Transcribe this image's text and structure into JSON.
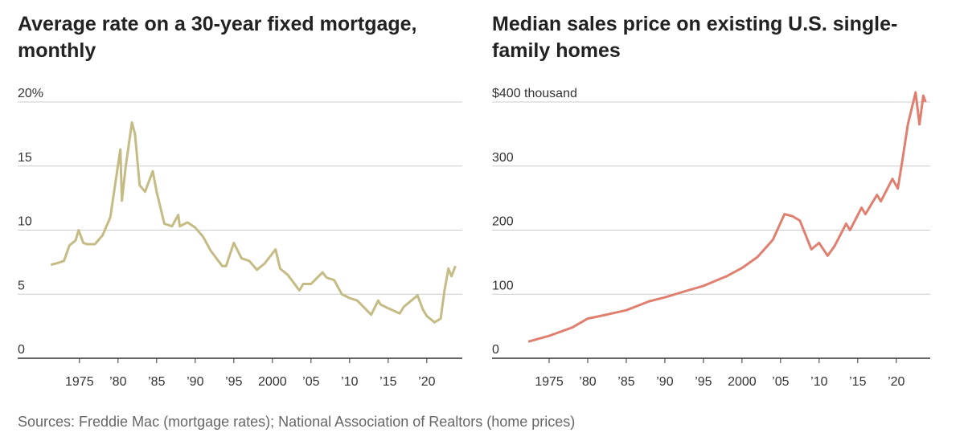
{
  "chart_data": [
    {
      "type": "line",
      "title": "Average rate on a 30-year fixed mortgage, monthly",
      "x": [
        1971.3,
        1972,
        1973,
        1973.7,
        1974.5,
        1974.9,
        1975.5,
        1976,
        1977,
        1978,
        1979,
        1980.3,
        1980.5,
        1981,
        1981.8,
        1982.2,
        1982.8,
        1983.5,
        1984.5,
        1985,
        1986,
        1987,
        1987.8,
        1988,
        1989,
        1990,
        1991,
        1992,
        1993.5,
        1994,
        1995,
        1996,
        1997,
        1998,
        1999,
        2000.4,
        2001,
        2002,
        2003.5,
        2004,
        2005,
        2006.5,
        2007,
        2008,
        2009,
        2010,
        2011,
        2012.8,
        2013.7,
        2014,
        2015,
        2016.5,
        2017,
        2018.8,
        2019.5,
        2020,
        2021,
        2021.8,
        2022.3,
        2022.8,
        2023.2,
        2023.7
      ],
      "series": [
        {
          "name": "30-year fixed rate",
          "color": "#c4bb85",
          "values": [
            7.3,
            7.4,
            7.6,
            8.8,
            9.2,
            10.0,
            9.0,
            8.9,
            8.9,
            9.6,
            11.0,
            16.3,
            12.3,
            15.0,
            18.4,
            17.5,
            13.5,
            13.0,
            14.6,
            13.0,
            10.5,
            10.3,
            11.2,
            10.3,
            10.6,
            10.2,
            9.5,
            8.4,
            7.2,
            7.2,
            9.0,
            7.8,
            7.6,
            6.9,
            7.4,
            8.5,
            7.0,
            6.5,
            5.3,
            5.8,
            5.8,
            6.7,
            6.3,
            6.1,
            5.0,
            4.7,
            4.5,
            3.4,
            4.5,
            4.2,
            3.9,
            3.5,
            4.0,
            4.9,
            3.8,
            3.3,
            2.8,
            3.1,
            5.3,
            7.0,
            6.4,
            7.2
          ]
        }
      ],
      "xlim": [
        1967,
        2024.6
      ],
      "xticks": [
        1975,
        {
          "value": 1980,
          "label": "’80"
        },
        {
          "value": 1985,
          "label": "’85"
        },
        {
          "value": 1990,
          "label": "’90"
        },
        {
          "value": 1995,
          "label": "’95"
        },
        2000,
        {
          "value": 2005,
          "label": "’05"
        },
        {
          "value": 2010,
          "label": "’10"
        },
        {
          "value": 2015,
          "label": "’15"
        },
        {
          "value": 2020,
          "label": "’20"
        }
      ],
      "ylim": [
        0,
        20
      ],
      "yticks": [
        0,
        5,
        10,
        15,
        {
          "value": 20,
          "label": "20%"
        }
      ],
      "grid": true
    },
    {
      "type": "line",
      "title": "Median sales price on existing U.S. single-family homes",
      "x": [
        1972.3,
        1975,
        1978,
        1980,
        1982,
        1985,
        1988,
        1990,
        1993,
        1995,
        1998,
        2000,
        2002,
        2004,
        2005.5,
        2006.5,
        2007.5,
        2009,
        2010,
        2011.1,
        2012,
        2013.5,
        2014,
        2015.5,
        2016,
        2017.5,
        2018,
        2019.5,
        2020.2,
        2020.8,
        2021.5,
        2022.5,
        2023,
        2023.5,
        2023.8
      ],
      "series": [
        {
          "name": "Median sales price",
          "color": "#e07f6f",
          "values": [
            26,
            35,
            48,
            62,
            67,
            75,
            89,
            95,
            106,
            113,
            128,
            141,
            158,
            185,
            225,
            222,
            215,
            170,
            180,
            160,
            175,
            210,
            200,
            235,
            225,
            255,
            245,
            280,
            265,
            310,
            365,
            415,
            365,
            410,
            400
          ]
        }
      ],
      "xlim": [
        1967.6,
        2024.4
      ],
      "xticks": [
        1975,
        {
          "value": 1980,
          "label": "’80"
        },
        {
          "value": 1985,
          "label": "’85"
        },
        {
          "value": 1990,
          "label": "’90"
        },
        {
          "value": 1995,
          "label": "’95"
        },
        2000,
        {
          "value": 2005,
          "label": "’05"
        },
        {
          "value": 2010,
          "label": "’10"
        },
        {
          "value": 2015,
          "label": "’15"
        },
        {
          "value": 2020,
          "label": "’20"
        }
      ],
      "ylim": [
        0,
        400
      ],
      "yticks": [
        0,
        100,
        200,
        300,
        {
          "value": 400,
          "label": "$400 thousand"
        }
      ],
      "grid": true
    }
  ],
  "source": "Sources: Freddie Mac (mortgage rates); National Association of Realtors (home prices)"
}
